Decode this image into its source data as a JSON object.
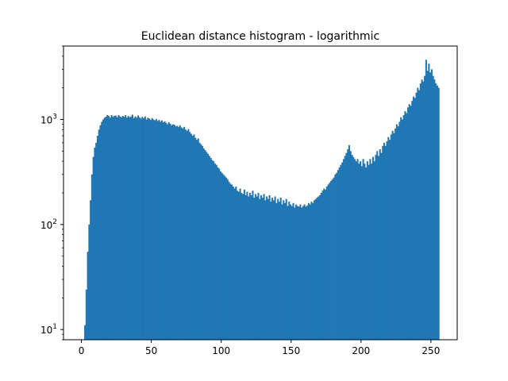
{
  "chart_data": {
    "type": "bar",
    "title": "Euclidean distance histogram - logarithmic",
    "xlabel": "",
    "ylabel": "",
    "y_scale": "log",
    "xlim": [
      -12.8,
      268.8
    ],
    "ylim": [
      8,
      5000
    ],
    "bar_color": "#1f77b4",
    "grid": false,
    "legend": "none",
    "bin_start": 0,
    "bin_width": 1,
    "x_ticks": [
      {
        "value": 0,
        "label": "0"
      },
      {
        "value": 50,
        "label": "50"
      },
      {
        "value": 100,
        "label": "100"
      },
      {
        "value": 150,
        "label": "150"
      },
      {
        "value": 200,
        "label": "200"
      },
      {
        "value": 250,
        "label": "250"
      }
    ],
    "y_ticks": [
      {
        "value": 10,
        "base": "10",
        "exp": "1"
      },
      {
        "value": 100,
        "base": "10",
        "exp": "2"
      },
      {
        "value": 1000,
        "base": "10",
        "exp": "3"
      }
    ],
    "values": [
      0,
      0,
      11,
      24,
      55,
      100,
      170,
      300,
      440,
      540,
      600,
      700,
      800,
      880,
      950,
      1000,
      1040,
      1060,
      1100,
      1080,
      1040,
      1100,
      1060,
      1080,
      1090,
      1050,
      1100,
      1070,
      1050,
      1080,
      1060,
      1100,
      1040,
      1080,
      1050,
      1070,
      1110,
      1030,
      1070,
      1040,
      1090,
      1050,
      1020,
      1060,
      1030,
      1070,
      1000,
      1040,
      1020,
      990,
      1030,
      1000,
      980,
      1010,
      970,
      990,
      950,
      980,
      940,
      960,
      930,
      900,
      940,
      910,
      880,
      900,
      890,
      860,
      870,
      850,
      880,
      840,
      820,
      850,
      800,
      780,
      810,
      760,
      730,
      700,
      720,
      670,
      640,
      660,
      600,
      580,
      560,
      530,
      510,
      490,
      470,
      450,
      430,
      410,
      400,
      380,
      370,
      350,
      340,
      320,
      310,
      300,
      290,
      280,
      270,
      255,
      245,
      240,
      230,
      220,
      230,
      210,
      205,
      220,
      200,
      195,
      215,
      190,
      205,
      185,
      200,
      190,
      210,
      180,
      195,
      185,
      200,
      175,
      190,
      180,
      195,
      170,
      185,
      175,
      190,
      165,
      180,
      170,
      185,
      160,
      175,
      165,
      180,
      155,
      170,
      160,
      175,
      150,
      165,
      155,
      150,
      160,
      145,
      155,
      150,
      148,
      155,
      145,
      150,
      155,
      148,
      152,
      160,
      155,
      165,
      160,
      170,
      175,
      180,
      185,
      190,
      200,
      210,
      220,
      215,
      230,
      240,
      250,
      260,
      270,
      280,
      300,
      310,
      330,
      350,
      370,
      390,
      420,
      450,
      480,
      520,
      570,
      500,
      460,
      440,
      420,
      400,
      420,
      380,
      400,
      360,
      420,
      380,
      350,
      400,
      370,
      420,
      380,
      440,
      400,
      460,
      500,
      450,
      520,
      480,
      560,
      600,
      560,
      620,
      680,
      640,
      720,
      780,
      740,
      820,
      900,
      860,
      950,
      1050,
      1000,
      1100,
      1200,
      1150,
      1300,
      1400,
      1350,
      1500,
      1650,
      1600,
      1800,
      2000,
      1900,
      2200,
      2400,
      2300,
      2600,
      3700,
      2900,
      3400,
      2800,
      3000,
      2600,
      2400,
      2200,
      2100,
      2000
    ]
  }
}
